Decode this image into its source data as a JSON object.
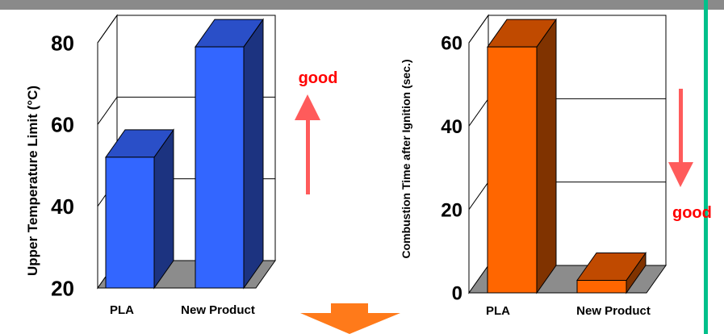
{
  "chart_data": [
    {
      "type": "bar",
      "ylabel": "Upper Temperature Limit (°C)",
      "categories": [
        "PLA",
        "New Product"
      ],
      "values": [
        52,
        79
      ],
      "ylim": [
        20,
        80
      ],
      "yticks": [
        "20",
        "40",
        "60",
        "80"
      ],
      "bar_colors": {
        "front": "#3366FF",
        "top": "#2A4FC8",
        "side": "#1C3380"
      },
      "annotation": {
        "text": "good",
        "direction": "up"
      }
    },
    {
      "type": "bar",
      "ylabel": "Combustion Time after Ignition (sec.)",
      "categories": [
        "PLA",
        "New Product"
      ],
      "values": [
        59,
        3
      ],
      "ylim": [
        0,
        60
      ],
      "yticks": [
        "0",
        "20",
        "40",
        "60"
      ],
      "bar_colors": {
        "front": "#FF6600",
        "top": "#C04A00",
        "side": "#803300"
      },
      "annotation": {
        "text": "good",
        "direction": "down"
      }
    }
  ],
  "colors": {
    "annotation_text": "#FF0000",
    "annotation_arrow": "#FF5B5B",
    "divider": "#00C08B",
    "down_arrow": "#FF7A1A",
    "floor": "#8C8C8C"
  }
}
